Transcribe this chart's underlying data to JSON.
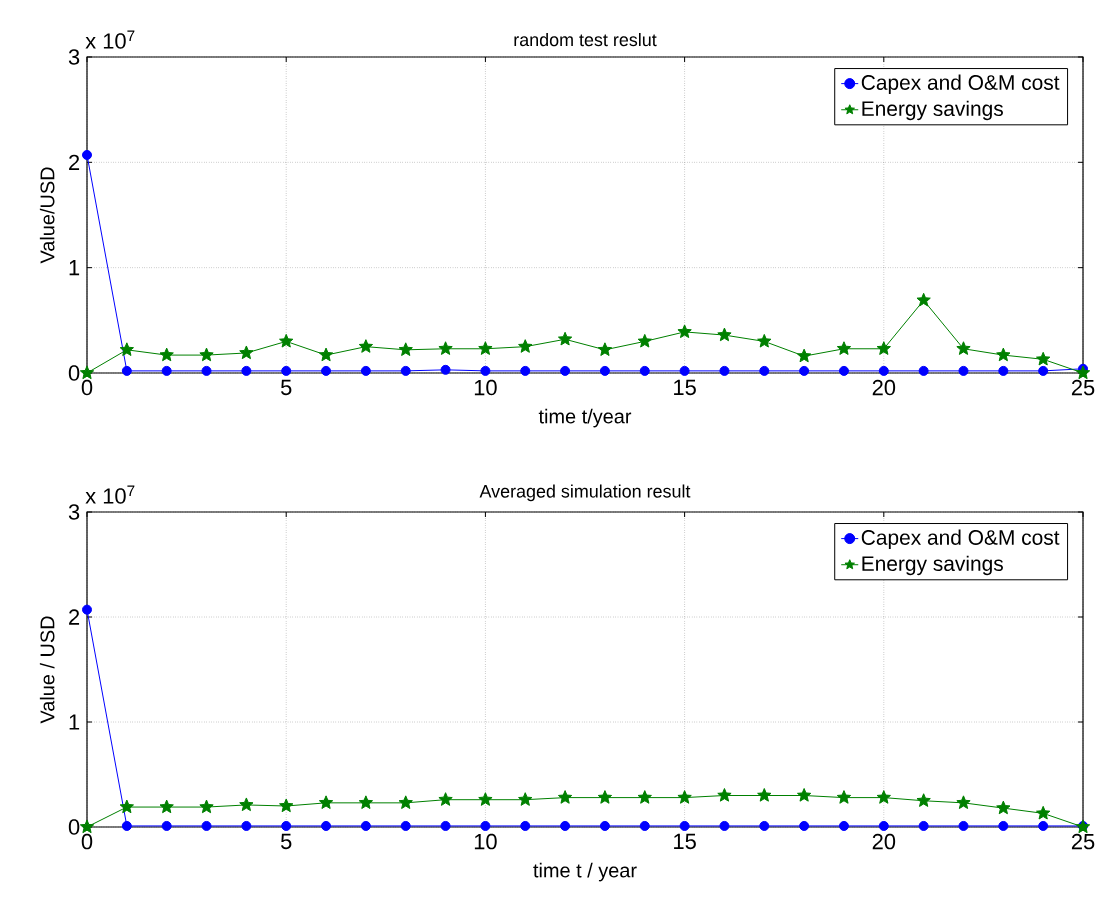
{
  "chart_data": [
    {
      "type": "line",
      "title": "random test reslut",
      "xlabel": "time t/year",
      "ylabel": "Value/USD",
      "annotations": [
        "x 10$^{7}$"
      ],
      "x": [
        0,
        1,
        2,
        3,
        4,
        5,
        6,
        7,
        8,
        9,
        10,
        11,
        12,
        13,
        14,
        15,
        16,
        17,
        18,
        19,
        20,
        21,
        22,
        23,
        24,
        25
      ],
      "series": [
        {
          "name": "Capex and O&M cost",
          "color": "#0000ff",
          "marker": "circle",
          "values": [
            2.07,
            0.02,
            0.02,
            0.02,
            0.02,
            0.02,
            0.02,
            0.02,
            0.02,
            0.03,
            0.02,
            0.02,
            0.02,
            0.02,
            0.02,
            0.02,
            0.02,
            0.02,
            0.02,
            0.02,
            0.02,
            0.02,
            0.02,
            0.02,
            0.02,
            0.04
          ]
        },
        {
          "name": "Energy savings",
          "color": "#008000",
          "marker": "star",
          "values": [
            0,
            0.22,
            0.17,
            0.17,
            0.19,
            0.3,
            0.17,
            0.25,
            0.22,
            0.23,
            0.23,
            0.25,
            0.32,
            0.22,
            0.3,
            0.39,
            0.36,
            0.3,
            0.16,
            0.23,
            0.23,
            0.69,
            0.23,
            0.17,
            0.13,
            0
          ]
        }
      ],
      "xlim": [
        0,
        25
      ],
      "xticks": [
        0,
        5,
        10,
        15,
        20,
        25
      ],
      "ylim": [
        0,
        3
      ],
      "yticks": [
        0,
        1,
        2,
        3
      ],
      "grid": true,
      "legend": "top right",
      "line_style": "solid"
    },
    {
      "type": "line",
      "title": "Averaged simulation result",
      "xlabel": "time t / year",
      "ylabel": "Value / USD",
      "annotations": [
        "x 10$^{7}$"
      ],
      "x": [
        0,
        1,
        2,
        3,
        4,
        5,
        6,
        7,
        8,
        9,
        10,
        11,
        12,
        13,
        14,
        15,
        16,
        17,
        18,
        19,
        20,
        21,
        22,
        23,
        24,
        25
      ],
      "series": [
        {
          "name": "Capex and O&M cost",
          "color": "#0000ff",
          "marker": "circle",
          "values": [
            2.07,
            0.01,
            0.01,
            0.01,
            0.01,
            0.01,
            0.01,
            0.01,
            0.01,
            0.01,
            0.01,
            0.01,
            0.01,
            0.01,
            0.01,
            0.01,
            0.01,
            0.01,
            0.01,
            0.01,
            0.01,
            0.01,
            0.01,
            0.01,
            0.01,
            0.01
          ]
        },
        {
          "name": "Energy savings",
          "color": "#008000",
          "marker": "star",
          "values": [
            0,
            0.19,
            0.19,
            0.19,
            0.21,
            0.2,
            0.23,
            0.23,
            0.23,
            0.26,
            0.26,
            0.26,
            0.28,
            0.28,
            0.28,
            0.28,
            0.3,
            0.3,
            0.3,
            0.28,
            0.28,
            0.25,
            0.23,
            0.18,
            0.13,
            0
          ]
        }
      ],
      "xlim": [
        0,
        25
      ],
      "xticks": [
        0,
        5,
        10,
        15,
        20,
        25
      ],
      "ylim": [
        0,
        3
      ],
      "yticks": [
        0,
        1,
        2,
        3
      ],
      "grid": true,
      "legend": "top right",
      "line_style": "solid"
    }
  ]
}
